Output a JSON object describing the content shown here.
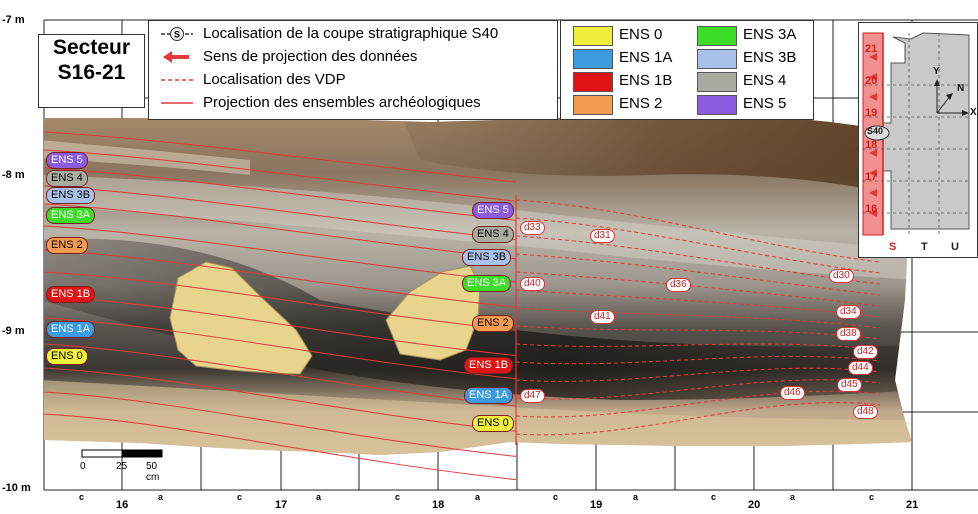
{
  "title": {
    "line1": "Secteur",
    "line2": "S16-21"
  },
  "legend_symbols": [
    {
      "symbol": "section-marker",
      "label": "Localisation de la coupe stratigraphique S40",
      "marker_text": "S"
    },
    {
      "symbol": "red-arrow",
      "label": "Sens de projection des données"
    },
    {
      "symbol": "red-dashed-line",
      "label": "Localisation des VDP"
    },
    {
      "symbol": "red-solid-line",
      "label": "Projection des ensembles archéologiques"
    }
  ],
  "legend_units": [
    {
      "label": "ENS 0",
      "color": "#f0f03c"
    },
    {
      "label": "ENS 1A",
      "color": "#3c9be0"
    },
    {
      "label": "ENS 1B",
      "color": "#e01414"
    },
    {
      "label": "ENS 2",
      "color": "#f59b50"
    },
    {
      "label": "ENS 3A",
      "color": "#3cdc28"
    },
    {
      "label": "ENS 3B",
      "color": "#a9c1e8"
    },
    {
      "label": "ENS 4",
      "color": "#a8aca0"
    },
    {
      "label": "ENS 5",
      "color": "#8c5ce0"
    }
  ],
  "depth_labels": [
    "-7 m",
    "-8 m",
    "-9 m",
    "-10 m"
  ],
  "bottom_axis": {
    "squares": [
      "16",
      "17",
      "18",
      "19",
      "20",
      "21"
    ],
    "sub_labels": [
      "c",
      "a"
    ]
  },
  "left_unit_tags": [
    {
      "label": "ENS 5",
      "color": "#8c5ce0",
      "dark": true
    },
    {
      "label": "ENS 4",
      "color": "#a8aca0",
      "dark": false
    },
    {
      "label": "ENS 3B",
      "color": "#a9c1e8",
      "dark": false
    },
    {
      "label": "ENS 3A",
      "color": "#3cdc28",
      "dark": true
    },
    {
      "label": "ENS 2",
      "color": "#f59b50",
      "dark": false
    },
    {
      "label": "ENS 1B",
      "color": "#e01414",
      "dark": true
    },
    {
      "label": "ENS 1A",
      "color": "#3c9be0",
      "dark": true
    },
    {
      "label": "ENS 0",
      "color": "#f0f03c",
      "dark": false
    }
  ],
  "mid_unit_tags": [
    {
      "label": "ENS 5",
      "color": "#8c5ce0",
      "dark": true
    },
    {
      "label": "ENS 4",
      "color": "#a8aca0",
      "dark": false
    },
    {
      "label": "ENS 3B",
      "color": "#a9c1e8",
      "dark": false
    },
    {
      "label": "ENS 3A",
      "color": "#3cdc28",
      "dark": true
    },
    {
      "label": "ENS 2",
      "color": "#f59b50",
      "dark": false
    },
    {
      "label": "ENS 1B",
      "color": "#e01414",
      "dark": true
    },
    {
      "label": "ENS 1A",
      "color": "#3c9be0",
      "dark": true
    },
    {
      "label": "ENS 0",
      "color": "#f0f03c",
      "dark": false
    }
  ],
  "vdp_labels": [
    "d33",
    "d31",
    "d40",
    "d36",
    "d41",
    "d47",
    "d30",
    "d34",
    "d38",
    "d42",
    "d44",
    "d45",
    "d46",
    "d48"
  ],
  "scale_bar": {
    "ticks": [
      "0",
      "25",
      "50 cm"
    ]
  },
  "inset": {
    "rows": [
      "21",
      "20",
      "19",
      "18",
      "17",
      "16"
    ],
    "cols": [
      "S",
      "T",
      "U"
    ],
    "section_label": "S40",
    "axis_y": "Y",
    "axis_x": "X",
    "north": "N"
  }
}
